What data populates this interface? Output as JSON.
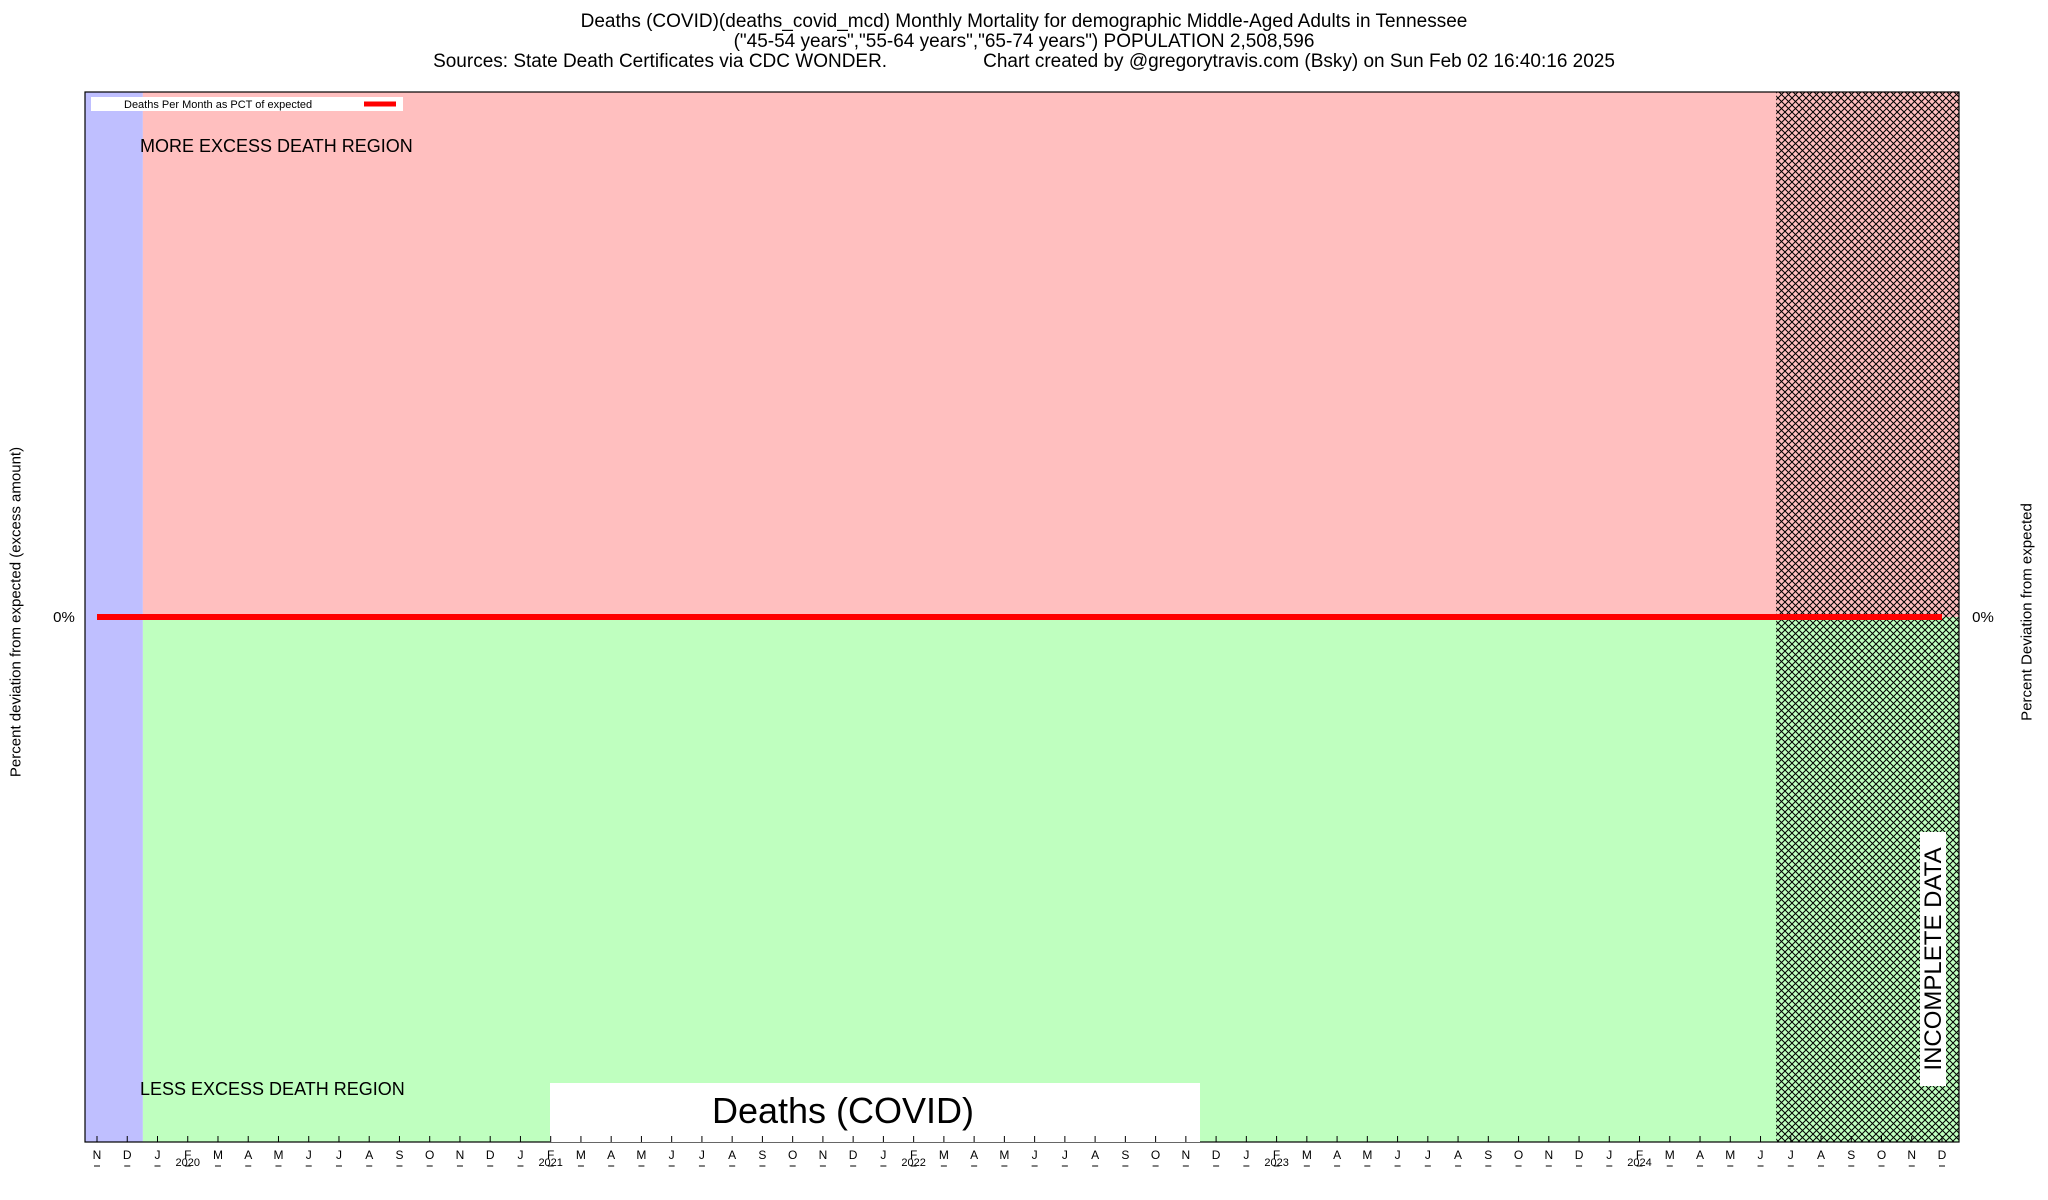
{
  "header": {
    "title_line1": "Deaths (COVID)(deaths_covid_mcd) Monthly Mortality for demographic Middle-Aged Adults in Tennessee",
    "title_line2": "(\"45-54 years\",\"55-64 years\",\"65-74 years\") POPULATION 2,508,596",
    "sources": "Sources: State Death Certificates via CDC WONDER.",
    "credit": "Chart created by @gregorytravis.com (Bsky) on Sun Feb 02 16:40:16 2025"
  },
  "colors": {
    "excess_region": "#ffbfbf",
    "less_region": "#bfffbf",
    "baseline_region": "#bfbfff",
    "series_line": "#ff0000",
    "hatch": "#000000"
  },
  "chart_data": {
    "type": "line",
    "ylabel_left": "Percent deviation from expected (excess amount)",
    "ylabel_right": "Percent Deviation from expected",
    "y_tick_left": "0%",
    "y_tick_right": "0%",
    "legend": {
      "label": "Deaths Per Month as PCT of expected",
      "placement": "top-left"
    },
    "region_labels": {
      "more": "MORE EXCESS DEATH REGION",
      "less": "LESS EXCESS DEATH REGION",
      "incomplete": "INCOMPLETE DATA",
      "watermark": "Deaths (COVID)"
    },
    "x_start": "2019-11",
    "x_end": "2024-12",
    "baseline_months": [
      "2019-11",
      "2019-12"
    ],
    "incomplete_from": "2024-07",
    "month_letters": [
      "N",
      "D",
      "J",
      "F",
      "M",
      "A",
      "M",
      "J",
      "J",
      "A",
      "S",
      "O",
      "N",
      "D",
      "J",
      "F",
      "M",
      "A",
      "M",
      "J",
      "J",
      "A",
      "S",
      "O",
      "N",
      "D",
      "J",
      "F",
      "M",
      "A",
      "M",
      "J",
      "J",
      "A",
      "S",
      "O",
      "N",
      "D",
      "J",
      "F",
      "M",
      "A",
      "M",
      "J",
      "J",
      "A",
      "S",
      "O",
      "N",
      "D",
      "J",
      "F",
      "M",
      "A",
      "M",
      "J",
      "J",
      "A",
      "S",
      "O",
      "N",
      "D"
    ],
    "year_labels": [
      {
        "label": "2020",
        "month": "2020-02"
      },
      {
        "label": "2021",
        "month": "2021-02"
      },
      {
        "label": "2022",
        "month": "2022-02"
      },
      {
        "label": "2023",
        "month": "2023-02"
      },
      {
        "label": "2024",
        "month": "2024-02"
      }
    ],
    "series": [
      {
        "name": "Deaths Per Month as PCT of expected",
        "x": [
          "2019-11",
          "2024-12"
        ],
        "y": [
          0,
          0
        ]
      }
    ],
    "grid": false
  }
}
